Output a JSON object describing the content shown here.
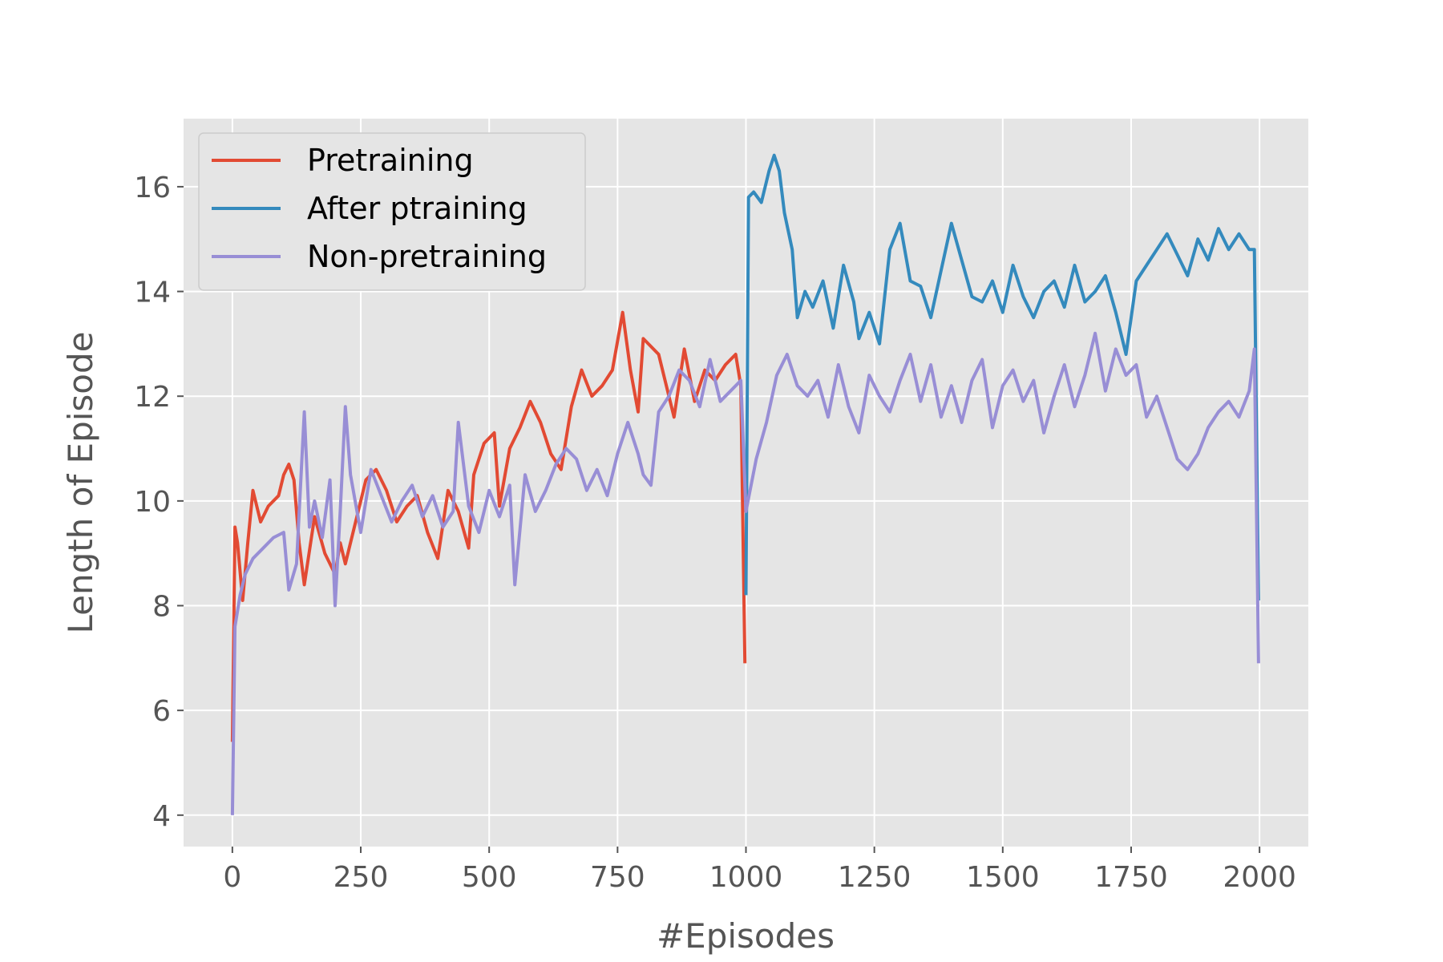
{
  "chart_data": {
    "type": "line",
    "title": "",
    "xlabel": "#Episodes",
    "ylabel": "Length of Episode",
    "xlim": [
      -95,
      2095
    ],
    "ylim": [
      3.4,
      17.3
    ],
    "xticks": [
      0,
      250,
      500,
      750,
      1000,
      1250,
      1500,
      1750,
      2000
    ],
    "yticks": [
      4,
      6,
      8,
      10,
      12,
      14,
      16
    ],
    "grid": true,
    "legend_position": "top-left",
    "series": [
      {
        "name": "Pretraining",
        "color": "#e24a33",
        "points": [
          [
            0,
            5.4
          ],
          [
            5,
            9.5
          ],
          [
            10,
            9.2
          ],
          [
            20,
            8.1
          ],
          [
            30,
            9.2
          ],
          [
            40,
            10.2
          ],
          [
            55,
            9.6
          ],
          [
            70,
            9.9
          ],
          [
            90,
            10.1
          ],
          [
            100,
            10.5
          ],
          [
            110,
            10.7
          ],
          [
            120,
            10.4
          ],
          [
            130,
            9.2
          ],
          [
            140,
            8.4
          ],
          [
            160,
            9.7
          ],
          [
            180,
            9.0
          ],
          [
            200,
            8.6
          ],
          [
            210,
            9.2
          ],
          [
            220,
            8.8
          ],
          [
            240,
            9.6
          ],
          [
            260,
            10.4
          ],
          [
            280,
            10.6
          ],
          [
            300,
            10.2
          ],
          [
            320,
            9.6
          ],
          [
            340,
            9.9
          ],
          [
            360,
            10.1
          ],
          [
            380,
            9.4
          ],
          [
            400,
            8.9
          ],
          [
            420,
            10.2
          ],
          [
            440,
            9.8
          ],
          [
            460,
            9.1
          ],
          [
            470,
            10.5
          ],
          [
            490,
            11.1
          ],
          [
            510,
            11.3
          ],
          [
            520,
            9.9
          ],
          [
            540,
            11.0
          ],
          [
            560,
            11.4
          ],
          [
            580,
            11.9
          ],
          [
            600,
            11.5
          ],
          [
            620,
            10.9
          ],
          [
            640,
            10.6
          ],
          [
            660,
            11.8
          ],
          [
            680,
            12.5
          ],
          [
            700,
            12.0
          ],
          [
            720,
            12.2
          ],
          [
            740,
            12.5
          ],
          [
            760,
            13.6
          ],
          [
            775,
            12.5
          ],
          [
            790,
            11.7
          ],
          [
            800,
            13.1
          ],
          [
            830,
            12.8
          ],
          [
            860,
            11.6
          ],
          [
            880,
            12.9
          ],
          [
            900,
            11.9
          ],
          [
            920,
            12.5
          ],
          [
            940,
            12.3
          ],
          [
            960,
            12.6
          ],
          [
            980,
            12.8
          ],
          [
            990,
            12.2
          ],
          [
            998,
            6.9
          ]
        ]
      },
      {
        "name": "After ptraining",
        "color": "#348abd",
        "points": [
          [
            1000,
            8.2
          ],
          [
            1005,
            15.8
          ],
          [
            1015,
            15.9
          ],
          [
            1030,
            15.7
          ],
          [
            1045,
            16.3
          ],
          [
            1055,
            16.6
          ],
          [
            1065,
            16.3
          ],
          [
            1075,
            15.5
          ],
          [
            1090,
            14.8
          ],
          [
            1100,
            13.5
          ],
          [
            1115,
            14.0
          ],
          [
            1130,
            13.7
          ],
          [
            1150,
            14.2
          ],
          [
            1170,
            13.3
          ],
          [
            1190,
            14.5
          ],
          [
            1210,
            13.8
          ],
          [
            1220,
            13.1
          ],
          [
            1240,
            13.6
          ],
          [
            1260,
            13.0
          ],
          [
            1280,
            14.8
          ],
          [
            1300,
            15.3
          ],
          [
            1320,
            14.2
          ],
          [
            1340,
            14.1
          ],
          [
            1360,
            13.5
          ],
          [
            1380,
            14.4
          ],
          [
            1400,
            15.3
          ],
          [
            1420,
            14.6
          ],
          [
            1440,
            13.9
          ],
          [
            1460,
            13.8
          ],
          [
            1480,
            14.2
          ],
          [
            1500,
            13.6
          ],
          [
            1520,
            14.5
          ],
          [
            1540,
            13.9
          ],
          [
            1560,
            13.5
          ],
          [
            1580,
            14.0
          ],
          [
            1600,
            14.2
          ],
          [
            1620,
            13.7
          ],
          [
            1640,
            14.5
          ],
          [
            1660,
            13.8
          ],
          [
            1680,
            14.0
          ],
          [
            1700,
            14.3
          ],
          [
            1720,
            13.6
          ],
          [
            1740,
            12.8
          ],
          [
            1760,
            14.2
          ],
          [
            1780,
            14.5
          ],
          [
            1800,
            14.8
          ],
          [
            1820,
            15.1
          ],
          [
            1840,
            14.7
          ],
          [
            1860,
            14.3
          ],
          [
            1880,
            15.0
          ],
          [
            1900,
            14.6
          ],
          [
            1920,
            15.2
          ],
          [
            1940,
            14.8
          ],
          [
            1960,
            15.1
          ],
          [
            1980,
            14.8
          ],
          [
            1990,
            14.8
          ],
          [
            1998,
            8.1
          ]
        ]
      },
      {
        "name": "Non-pretraining",
        "color": "#988ed5",
        "points": [
          [
            0,
            4.0
          ],
          [
            5,
            7.6
          ],
          [
            15,
            8.2
          ],
          [
            25,
            8.6
          ],
          [
            40,
            8.9
          ],
          [
            60,
            9.1
          ],
          [
            80,
            9.3
          ],
          [
            100,
            9.4
          ],
          [
            110,
            8.3
          ],
          [
            125,
            8.8
          ],
          [
            140,
            11.7
          ],
          [
            150,
            9.5
          ],
          [
            160,
            10.0
          ],
          [
            175,
            9.3
          ],
          [
            190,
            10.4
          ],
          [
            200,
            8.0
          ],
          [
            210,
            9.8
          ],
          [
            220,
            11.8
          ],
          [
            230,
            10.5
          ],
          [
            250,
            9.4
          ],
          [
            270,
            10.6
          ],
          [
            290,
            10.1
          ],
          [
            310,
            9.6
          ],
          [
            330,
            10.0
          ],
          [
            350,
            10.3
          ],
          [
            370,
            9.7
          ],
          [
            390,
            10.1
          ],
          [
            410,
            9.5
          ],
          [
            430,
            9.8
          ],
          [
            440,
            11.5
          ],
          [
            460,
            9.9
          ],
          [
            480,
            9.4
          ],
          [
            500,
            10.2
          ],
          [
            520,
            9.7
          ],
          [
            540,
            10.3
          ],
          [
            550,
            8.4
          ],
          [
            570,
            10.5
          ],
          [
            590,
            9.8
          ],
          [
            610,
            10.2
          ],
          [
            630,
            10.7
          ],
          [
            650,
            11.0
          ],
          [
            670,
            10.8
          ],
          [
            690,
            10.2
          ],
          [
            710,
            10.6
          ],
          [
            730,
            10.1
          ],
          [
            750,
            10.9
          ],
          [
            770,
            11.5
          ],
          [
            790,
            10.9
          ],
          [
            800,
            10.5
          ],
          [
            815,
            10.3
          ],
          [
            830,
            11.7
          ],
          [
            850,
            12.0
          ],
          [
            870,
            12.5
          ],
          [
            890,
            12.3
          ],
          [
            910,
            11.8
          ],
          [
            930,
            12.7
          ],
          [
            950,
            11.9
          ],
          [
            970,
            12.1
          ],
          [
            990,
            12.3
          ],
          [
            1000,
            9.8
          ],
          [
            1020,
            10.8
          ],
          [
            1040,
            11.5
          ],
          [
            1060,
            12.4
          ],
          [
            1080,
            12.8
          ],
          [
            1100,
            12.2
          ],
          [
            1120,
            12.0
          ],
          [
            1140,
            12.3
          ],
          [
            1160,
            11.6
          ],
          [
            1180,
            12.6
          ],
          [
            1200,
            11.8
          ],
          [
            1220,
            11.3
          ],
          [
            1240,
            12.4
          ],
          [
            1260,
            12.0
          ],
          [
            1280,
            11.7
          ],
          [
            1300,
            12.3
          ],
          [
            1320,
            12.8
          ],
          [
            1340,
            11.9
          ],
          [
            1360,
            12.6
          ],
          [
            1380,
            11.6
          ],
          [
            1400,
            12.2
          ],
          [
            1420,
            11.5
          ],
          [
            1440,
            12.3
          ],
          [
            1460,
            12.7
          ],
          [
            1480,
            11.4
          ],
          [
            1500,
            12.2
          ],
          [
            1520,
            12.5
          ],
          [
            1540,
            11.9
          ],
          [
            1560,
            12.3
          ],
          [
            1580,
            11.3
          ],
          [
            1600,
            12.0
          ],
          [
            1620,
            12.6
          ],
          [
            1640,
            11.8
          ],
          [
            1660,
            12.4
          ],
          [
            1680,
            13.2
          ],
          [
            1700,
            12.1
          ],
          [
            1720,
            12.9
          ],
          [
            1740,
            12.4
          ],
          [
            1760,
            12.6
          ],
          [
            1780,
            11.6
          ],
          [
            1800,
            12.0
          ],
          [
            1820,
            11.4
          ],
          [
            1840,
            10.8
          ],
          [
            1860,
            10.6
          ],
          [
            1880,
            10.9
          ],
          [
            1900,
            11.4
          ],
          [
            1920,
            11.7
          ],
          [
            1940,
            11.9
          ],
          [
            1960,
            11.6
          ],
          [
            1980,
            12.1
          ],
          [
            1990,
            12.9
          ],
          [
            1998,
            6.9
          ]
        ]
      }
    ]
  }
}
